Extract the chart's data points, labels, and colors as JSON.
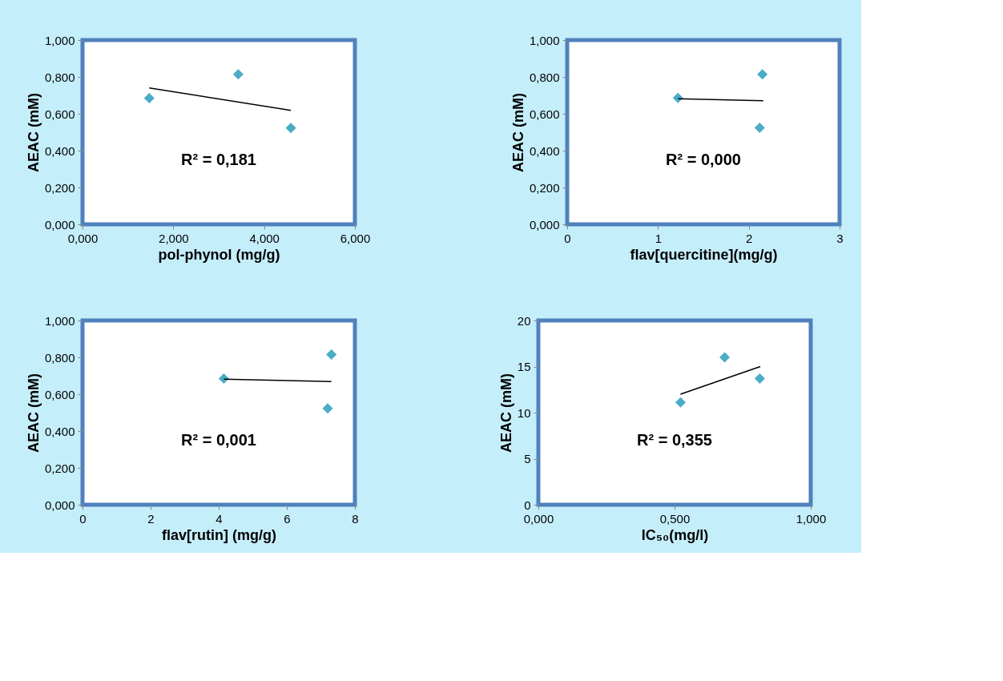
{
  "chart_data": [
    {
      "type": "scatter",
      "xlabel": "pol-phynol (mg/g)",
      "ylabel": "AEAC (mM)",
      "marker": "diamond",
      "grid": false,
      "legend": false,
      "x": [
        1.47,
        3.43,
        4.59
      ],
      "series": [
        {
          "color": "#4bacc6",
          "values": [
            0.685,
            0.814,
            0.523
          ]
        },
        {
          "type": "line",
          "marker": "none",
          "color": "#000000",
          "x": [
            1.47,
            4.59
          ],
          "values": [
            0.74,
            0.618
          ]
        }
      ],
      "xlim": [
        0,
        6
      ],
      "xticks": [
        {
          "value": 0,
          "label": "0,000"
        },
        {
          "value": 2,
          "label": "2,000"
        },
        {
          "value": 4,
          "label": "4,000"
        },
        {
          "value": 6,
          "label": "6,000"
        }
      ],
      "ylim": [
        0,
        1
      ],
      "yticks": [
        {
          "value": 0,
          "label": "0,000"
        },
        {
          "value": 0.2,
          "label": "0,200"
        },
        {
          "value": 0.4,
          "label": "0,400"
        },
        {
          "value": 0.6,
          "label": "0,600"
        },
        {
          "value": 0.8,
          "label": "0,800"
        },
        {
          "value": 1,
          "label": "1,000"
        }
      ],
      "annotations": [
        "R² = 0,181"
      ]
    },
    {
      "type": "scatter",
      "xlabel": "flav[quercitine](mg/g)",
      "ylabel": "AEAC (mM)",
      "marker": "diamond",
      "grid": false,
      "legend": false,
      "x": [
        1.22,
        2.15,
        2.12
      ],
      "series": [
        {
          "color": "#4bacc6",
          "values": [
            0.686,
            0.814,
            0.524
          ]
        },
        {
          "type": "line",
          "marker": "none",
          "color": "#000000",
          "x": [
            1.22,
            2.16
          ],
          "values": [
            0.681,
            0.671
          ]
        }
      ],
      "xlim": [
        0,
        3
      ],
      "xticks": [
        0,
        1,
        2,
        3
      ],
      "ylim": [
        0,
        1
      ],
      "yticks": [
        {
          "value": 0,
          "label": "0,000"
        },
        {
          "value": 0.2,
          "label": "0,200"
        },
        {
          "value": 0.4,
          "label": "0,400"
        },
        {
          "value": 0.6,
          "label": "0,600"
        },
        {
          "value": 0.8,
          "label": "0,800"
        },
        {
          "value": 1,
          "label": "1,000"
        }
      ],
      "annotations": [
        "R² = 0,000"
      ]
    },
    {
      "type": "scatter",
      "xlabel": "flav[rutin] (mg/g)",
      "ylabel": "AEAC  (mM)",
      "marker": "diamond",
      "grid": false,
      "legend": false,
      "x": [
        4.15,
        7.31,
        7.2
      ],
      "series": [
        {
          "color": "#4bacc6",
          "values": [
            0.685,
            0.815,
            0.523
          ]
        },
        {
          "type": "line",
          "marker": "none",
          "color": "#000000",
          "x": [
            4.15,
            7.31
          ],
          "values": [
            0.682,
            0.669
          ]
        }
      ],
      "xlim": [
        0,
        8
      ],
      "xticks": [
        0,
        2,
        4,
        6,
        8
      ],
      "ylim": [
        0,
        1
      ],
      "yticks": [
        {
          "value": 0,
          "label": "0,000"
        },
        {
          "value": 0.2,
          "label": "0,200"
        },
        {
          "value": 0.4,
          "label": "0,400"
        },
        {
          "value": 0.6,
          "label": "0,600"
        },
        {
          "value": 0.8,
          "label": "0,800"
        },
        {
          "value": 1,
          "label": "1,000"
        }
      ],
      "annotations": [
        "R² = 0,001"
      ]
    },
    {
      "type": "scatter",
      "xlabel": "IC₅₀(mg/l)",
      "ylabel": "AEAC  (mM)",
      "marker": "diamond",
      "grid": false,
      "legend": false,
      "x": [
        0.522,
        0.684,
        0.813
      ],
      "series": [
        {
          "color": "#4bacc6",
          "values": [
            11.1,
            16.0,
            13.7
          ]
        },
        {
          "type": "line",
          "marker": "none",
          "color": "#000000",
          "x": [
            0.522,
            0.815
          ],
          "values": [
            12.0,
            15.0
          ]
        }
      ],
      "xlim": [
        0,
        1
      ],
      "xticks": [
        {
          "value": 0,
          "label": "0,000"
        },
        {
          "value": 0.5,
          "label": "0,500"
        },
        {
          "value": 1,
          "label": "1,000"
        }
      ],
      "ylim": [
        0,
        20
      ],
      "yticks": [
        0,
        5,
        10,
        15,
        20
      ],
      "annotations": [
        "R² = 0,355"
      ]
    }
  ]
}
